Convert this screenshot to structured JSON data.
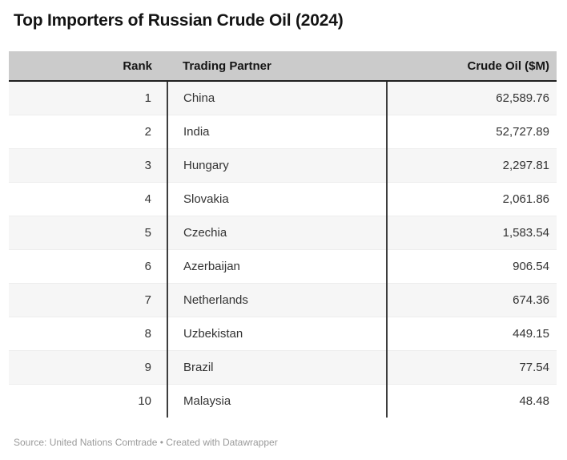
{
  "title": "Top Importers of Russian Crude Oil (2024)",
  "table": {
    "columns": [
      {
        "key": "rank",
        "label": "Rank",
        "align": "right"
      },
      {
        "key": "partner",
        "label": "Trading Partner",
        "align": "left"
      },
      {
        "key": "value",
        "label": "Crude Oil ($M)",
        "align": "right"
      }
    ],
    "rows": [
      {
        "rank": "1",
        "partner": "China",
        "value": "62,589.76"
      },
      {
        "rank": "2",
        "partner": "India",
        "value": "52,727.89"
      },
      {
        "rank": "3",
        "partner": "Hungary",
        "value": "2,297.81"
      },
      {
        "rank": "4",
        "partner": "Slovakia",
        "value": "2,061.86"
      },
      {
        "rank": "5",
        "partner": "Czechia",
        "value": "1,583.54"
      },
      {
        "rank": "6",
        "partner": "Azerbaijan",
        "value": "906.54"
      },
      {
        "rank": "7",
        "partner": "Netherlands",
        "value": "674.36"
      },
      {
        "rank": "8",
        "partner": "Uzbekistan",
        "value": "449.15"
      },
      {
        "rank": "9",
        "partner": "Brazil",
        "value": "77.54"
      },
      {
        "rank": "10",
        "partner": "Malaysia",
        "value": "48.48"
      }
    ]
  },
  "footer": {
    "text": "Source: United Nations Comtrade • Created with Datawrapper"
  },
  "colors": {
    "header_background": "#cbcbcb",
    "header_border": "#1f1f1f",
    "column_divider": "#3d3d3d",
    "row_stripe": "#f6f6f6",
    "body_text": "#333333",
    "title_text": "#141414",
    "footer_text": "#9a9a9a",
    "page_background": "#ffffff"
  },
  "chart_data": {
    "type": "table",
    "title": "Top Importers of Russian Crude Oil (2024)",
    "columns": [
      "Rank",
      "Trading Partner",
      "Crude Oil ($M)"
    ],
    "rows": [
      [
        1,
        "China",
        62589.76
      ],
      [
        2,
        "India",
        52727.89
      ],
      [
        3,
        "Hungary",
        2297.81
      ],
      [
        4,
        "Slovakia",
        2061.86
      ],
      [
        5,
        "Czechia",
        1583.54
      ],
      [
        6,
        "Azerbaijan",
        906.54
      ],
      [
        7,
        "Netherlands",
        674.36
      ],
      [
        8,
        "Uzbekistan",
        449.15
      ],
      [
        9,
        "Brazil",
        77.54
      ],
      [
        10,
        "Malaysia",
        48.48
      ]
    ],
    "source": "United Nations Comtrade",
    "credit": "Created with Datawrapper",
    "layout_hints": {
      "zebra_striping": true,
      "striped_rows": "even",
      "numeric_align": "right"
    }
  }
}
